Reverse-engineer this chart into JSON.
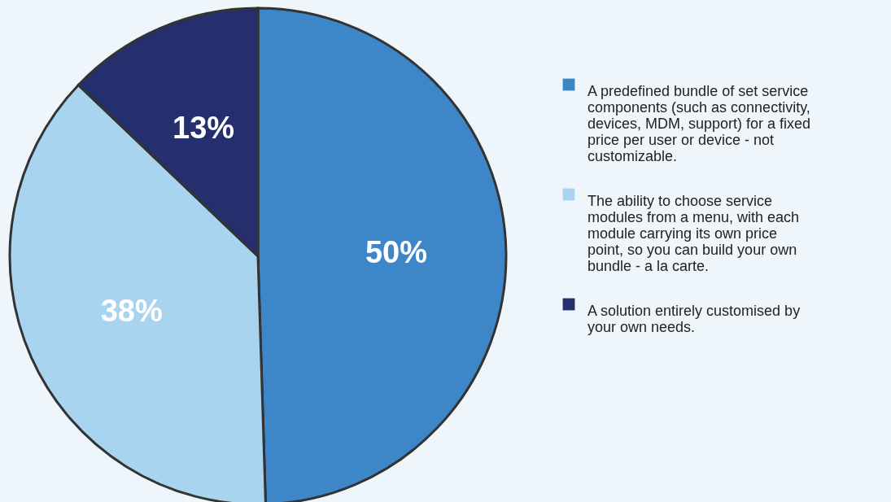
{
  "chart_data": {
    "type": "pie",
    "categories": [
      "A predefined bundle of set service components (such as connectivity, devices, MDM, support) for a fixed price per user or device - not customizable.",
      "The ability to choose service modules from a menu, with each module carrying its own price point, so you can build your own bundle - a la carte.",
      "A solution entirely customised by your own needs."
    ],
    "values": [
      50,
      38,
      13
    ],
    "colors": [
      "#3d87c8",
      "#a8d4f0",
      "#262f6e"
    ],
    "value_labels": [
      "50%",
      "38%",
      "13%"
    ],
    "legend": "right"
  }
}
